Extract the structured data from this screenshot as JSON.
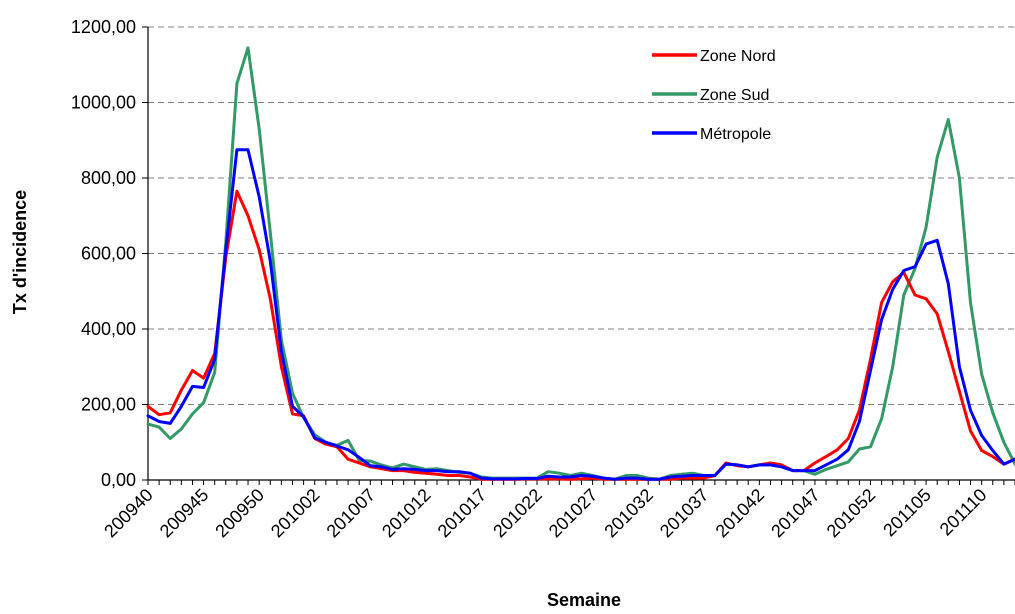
{
  "chart_data": {
    "type": "line",
    "title": "",
    "xlabel": "Semaine",
    "ylabel": "Tx d'incidence",
    "ylim": [
      0,
      1200
    ],
    "yticks": [
      "0,00",
      "200,00",
      "400,00",
      "600,00",
      "800,00",
      "1000,00",
      "1200,00"
    ],
    "grid": "horizontal-dashed",
    "legend_position": "top-right",
    "x": [
      "200940",
      "200941",
      "200942",
      "200943",
      "200944",
      "200945",
      "200946",
      "200947",
      "200948",
      "200949",
      "200950",
      "200951",
      "200952",
      "200953",
      "201001",
      "201002",
      "201003",
      "201004",
      "201005",
      "201006",
      "201007",
      "201008",
      "201009",
      "201010",
      "201011",
      "201012",
      "201013",
      "201014",
      "201015",
      "201016",
      "201017",
      "201018",
      "201019",
      "201020",
      "201021",
      "201022",
      "201023",
      "201024",
      "201025",
      "201026",
      "201027",
      "201028",
      "201029",
      "201030",
      "201031",
      "201032",
      "201033",
      "201034",
      "201035",
      "201036",
      "201037",
      "201038",
      "201039",
      "201040",
      "201041",
      "201042",
      "201043",
      "201044",
      "201045",
      "201046",
      "201047",
      "201048",
      "201049",
      "201050",
      "201051",
      "201052",
      "201101",
      "201102",
      "201103",
      "201104",
      "201105",
      "201106",
      "201107",
      "201108",
      "201109",
      "201110",
      "201111",
      "201112",
      "201113"
    ],
    "xtick_labels": [
      "200940",
      "200945",
      "200950",
      "201002",
      "201007",
      "201012",
      "201017",
      "201022",
      "201027",
      "201032",
      "201037",
      "201042",
      "201047",
      "201052",
      "201105",
      "201110"
    ],
    "series": [
      {
        "name": "Zone Nord",
        "color": "#ff0000",
        "values": [
          195,
          173,
          178,
          238,
          290,
          270,
          335,
          590,
          765,
          700,
          610,
          480,
          300,
          175,
          170,
          110,
          95,
          88,
          55,
          45,
          35,
          30,
          25,
          25,
          20,
          18,
          15,
          12,
          12,
          8,
          2,
          2,
          2,
          2,
          3,
          3,
          3,
          3,
          2,
          3,
          5,
          2,
          2,
          2,
          2,
          2,
          2,
          2,
          5,
          5,
          5,
          12,
          45,
          38,
          35,
          40,
          45,
          40,
          25,
          25,
          45,
          62,
          80,
          110,
          185,
          320,
          470,
          525,
          550,
          490,
          480,
          440,
          340,
          235,
          130,
          78,
          62,
          42,
          55
        ]
      },
      {
        "name": "Zone Sud",
        "color": "#339966",
        "values": [
          148,
          140,
          110,
          135,
          175,
          205,
          285,
          630,
          1050,
          1145,
          930,
          655,
          370,
          230,
          165,
          120,
          100,
          92,
          105,
          52,
          50,
          40,
          32,
          42,
          35,
          28,
          30,
          25,
          20,
          18,
          8,
          5,
          5,
          5,
          5,
          5,
          22,
          18,
          12,
          18,
          12,
          5,
          2,
          12,
          12,
          5,
          2,
          12,
          15,
          18,
          12,
          12,
          42,
          40,
          35,
          40,
          40,
          35,
          25,
          25,
          15,
          28,
          38,
          48,
          82,
          88,
          162,
          300,
          490,
          560,
          670,
          855,
          955,
          800,
          470,
          280,
          178,
          100,
          42
        ]
      },
      {
        "name": "Métropole",
        "color": "#0000ff",
        "values": [
          170,
          155,
          150,
          195,
          248,
          245,
          320,
          610,
          875,
          875,
          750,
          580,
          340,
          195,
          168,
          112,
          100,
          90,
          80,
          60,
          38,
          35,
          28,
          30,
          28,
          25,
          25,
          22,
          22,
          18,
          5,
          3,
          3,
          3,
          4,
          4,
          10,
          8,
          8,
          12,
          10,
          5,
          2,
          5,
          5,
          2,
          2,
          8,
          10,
          12,
          12,
          12,
          42,
          40,
          35,
          40,
          40,
          35,
          25,
          25,
          25,
          40,
          55,
          80,
          155,
          290,
          425,
          505,
          555,
          565,
          625,
          635,
          520,
          300,
          185,
          118,
          78,
          42,
          55
        ]
      }
    ]
  }
}
